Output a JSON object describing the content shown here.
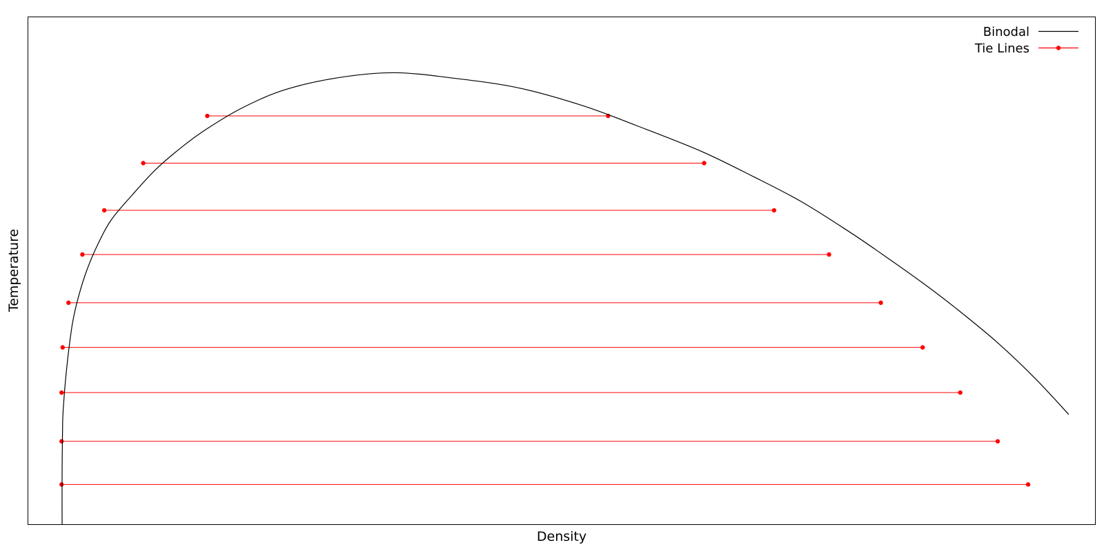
{
  "chart_data": {
    "type": "line",
    "title": "",
    "xlabel": "Density",
    "ylabel": "Temperature",
    "xlim": [
      0,
      1
    ],
    "ylim": [
      0,
      1
    ],
    "ticks_shown": false,
    "grid": false,
    "legend": {
      "placement": "top-right",
      "entries": [
        {
          "label": "Binodal",
          "color": "#000000",
          "marker": "none"
        },
        {
          "label": "Tie Lines",
          "color": "#ff0000",
          "marker": "dot"
        }
      ]
    },
    "binodal": {
      "name": "Binodal",
      "color": "#000000",
      "x": [
        0.032,
        0.032,
        0.0325,
        0.0335,
        0.035,
        0.038,
        0.042,
        0.0475,
        0.055,
        0.065,
        0.078,
        0.098,
        0.12,
        0.145,
        0.168,
        0.2,
        0.24,
        0.29,
        0.343,
        0.4,
        0.46,
        0.52,
        0.57,
        0.63,
        0.68,
        0.7246,
        0.77,
        0.8,
        0.8382,
        0.87,
        0.908,
        0.944,
        0.975
      ],
      "y": [
        0.0,
        0.1,
        0.2,
        0.24,
        0.28,
        0.34,
        0.4,
        0.45,
        0.5,
        0.55,
        0.6,
        0.65,
        0.7,
        0.745,
        0.78,
        0.82,
        0.856,
        0.88,
        0.89,
        0.879,
        0.86,
        0.825,
        0.786,
        0.736,
        0.685,
        0.636,
        0.576,
        0.533,
        0.476,
        0.425,
        0.359,
        0.287,
        0.217
      ]
    },
    "tie_lines": {
      "name": "Tie Lines",
      "color": "#ff0000",
      "lines": [
        {
          "temperature": 0.805,
          "x_left": 0.168,
          "x_right": 0.5435
        },
        {
          "temperature": 0.712,
          "x_left": 0.108,
          "x_right": 0.6335
        },
        {
          "temperature": 0.619,
          "x_left": 0.0715,
          "x_right": 0.699
        },
        {
          "temperature": 0.532,
          "x_left": 0.051,
          "x_right": 0.7505
        },
        {
          "temperature": 0.437,
          "x_left": 0.038,
          "x_right": 0.799
        },
        {
          "temperature": 0.349,
          "x_left": 0.0325,
          "x_right": 0.8382
        },
        {
          "temperature": 0.26,
          "x_left": 0.0315,
          "x_right": 0.8734
        },
        {
          "temperature": 0.164,
          "x_left": 0.0315,
          "x_right": 0.9085
        },
        {
          "temperature": 0.079,
          "x_left": 0.0315,
          "x_right": 0.937
        }
      ]
    }
  }
}
